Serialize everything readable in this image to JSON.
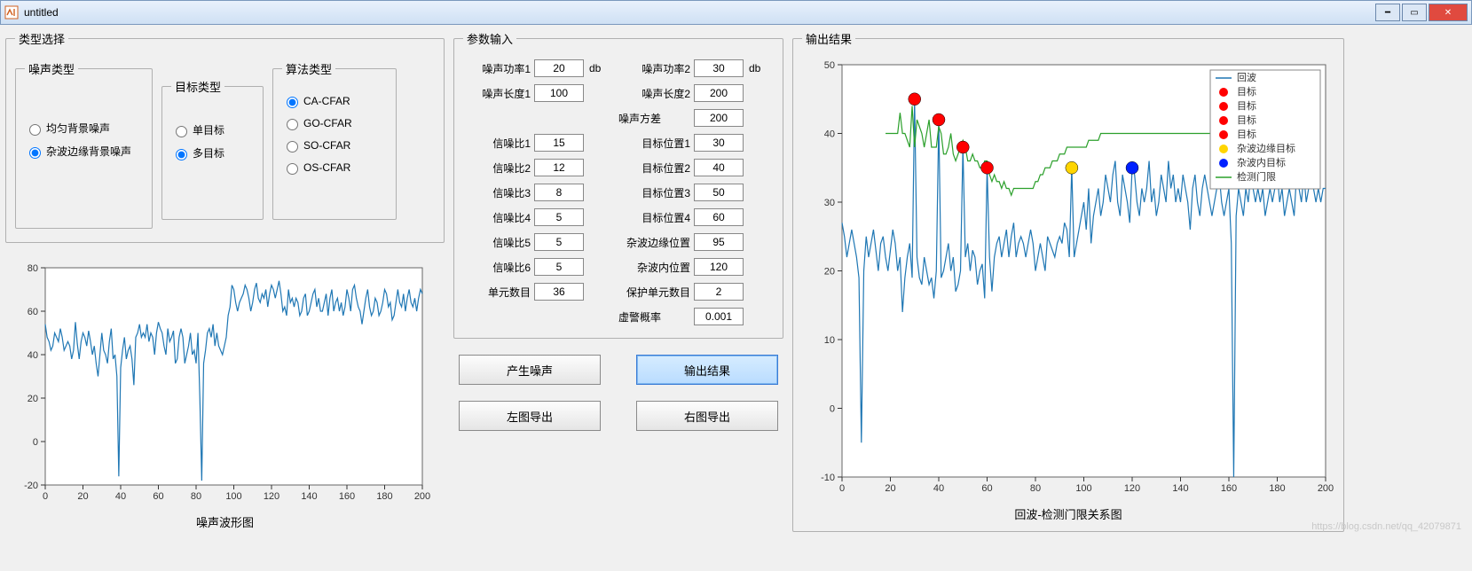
{
  "window": {
    "title": "untitled"
  },
  "panels": {
    "type_select": "类型选择",
    "noise_type": "噪声类型",
    "target_type": "目标类型",
    "algo_type": "算法类型",
    "param_input": "参数输入",
    "output_result": "输出结果"
  },
  "noise_types": {
    "opt1": "均匀背景噪声",
    "opt2": "杂波边缘背景噪声",
    "selected": 2
  },
  "target_types": {
    "opt1": "单目标",
    "opt2": "多目标",
    "selected": 2
  },
  "algo_types": {
    "opt1": "CA-CFAR",
    "opt2": "GO-CFAR",
    "opt3": "SO-CFAR",
    "opt4": "OS-CFAR",
    "selected": 1
  },
  "params": {
    "noise_power1_label": "噪声功率1",
    "noise_power1": "20",
    "db": "db",
    "noise_power2_label": "噪声功率2",
    "noise_power2": "30",
    "noise_len1_label": "噪声长度1",
    "noise_len1": "100",
    "noise_len2_label": "噪声长度2",
    "noise_len2": "200",
    "noise_var_label": "噪声方差",
    "noise_var": "200",
    "snr1_label": "信噪比1",
    "snr1": "15",
    "pos1_label": "目标位置1",
    "pos1": "30",
    "snr2_label": "信噪比2",
    "snr2": "12",
    "pos2_label": "目标位置2",
    "pos2": "40",
    "snr3_label": "信噪比3",
    "snr3": "8",
    "pos3_label": "目标位置3",
    "pos3": "50",
    "snr4_label": "信噪比4",
    "snr4": "5",
    "pos4_label": "目标位置4",
    "pos4": "60",
    "snr5_label": "信噪比5",
    "snr5": "5",
    "edge_pos_label": "杂波边缘位置",
    "edge_pos": "95",
    "snr6_label": "信噪比6",
    "snr6": "5",
    "inner_pos_label": "杂波内位置",
    "inner_pos": "120",
    "cells_label": "单元数目",
    "cells": "36",
    "guard_label": "保护单元数目",
    "guard": "2",
    "pfa_label": "虚警概率",
    "pfa": "0.001"
  },
  "buttons": {
    "gen_noise": "产生噪声",
    "output": "输出结果",
    "export_left": "左图导出",
    "export_right": "右图导出"
  },
  "left_chart": {
    "title": "噪声波形图",
    "xlim": [
      0,
      200
    ],
    "xticks": [
      0,
      20,
      40,
      60,
      80,
      100,
      120,
      140,
      160,
      180,
      200
    ],
    "ylim": [
      -20,
      80
    ],
    "yticks": [
      -20,
      0,
      20,
      40,
      60,
      80
    ],
    "line_color": "#1f77b4",
    "data_y": [
      54,
      48,
      46,
      42,
      44,
      50,
      48,
      46,
      52,
      48,
      42,
      44,
      46,
      44,
      38,
      42,
      55,
      45,
      38,
      46,
      50,
      48,
      44,
      51,
      46,
      40,
      44,
      36,
      30,
      40,
      50,
      42,
      40,
      36,
      46,
      52,
      38,
      40,
      30,
      -16,
      34,
      42,
      48,
      38,
      42,
      44,
      38,
      26,
      48,
      50,
      54,
      48,
      50,
      48,
      54,
      46,
      50,
      48,
      40,
      50,
      55,
      52,
      50,
      44,
      40,
      52,
      46,
      48,
      51,
      36,
      38,
      48,
      52,
      48,
      36,
      40,
      44,
      50,
      40,
      42,
      36,
      50,
      20,
      -18,
      36,
      42,
      50,
      52,
      48,
      54,
      44,
      50,
      44,
      42,
      40,
      44,
      48,
      58,
      62,
      72,
      70,
      64,
      60,
      64,
      66,
      68,
      72,
      70,
      66,
      60,
      64,
      70,
      73,
      66,
      64,
      68,
      66,
      70,
      62,
      68,
      72,
      70,
      66,
      70,
      74,
      68,
      60,
      62,
      58,
      70,
      64,
      66,
      62,
      66,
      64,
      58,
      60,
      66,
      68,
      58,
      60,
      64,
      68,
      70,
      62,
      66,
      60,
      60,
      64,
      68,
      58,
      66,
      70,
      60,
      64,
      66,
      60,
      64,
      58,
      62,
      70,
      66,
      60,
      70,
      72,
      66,
      62,
      60,
      54,
      60,
      66,
      70,
      62,
      58,
      60,
      66,
      64,
      58,
      60,
      64,
      70,
      68,
      62,
      64,
      56,
      58,
      64,
      70,
      64,
      62,
      68,
      60,
      66,
      70,
      64,
      62,
      66,
      60,
      66,
      70,
      68
    ]
  },
  "right_chart": {
    "title": "回波-检测门限关系图",
    "xlim": [
      0,
      200
    ],
    "xticks": [
      0,
      20,
      40,
      60,
      80,
      100,
      120,
      140,
      160,
      180,
      200
    ],
    "ylim": [
      -10,
      50
    ],
    "yticks": [
      -10,
      0,
      10,
      20,
      30,
      40,
      50
    ],
    "echo_color": "#1f77b4",
    "threshold_color": "#2ca02c",
    "markers": [
      {
        "x": 30,
        "y": 45,
        "color": "#ff0000"
      },
      {
        "x": 40,
        "y": 42,
        "color": "#ff0000"
      },
      {
        "x": 50,
        "y": 38,
        "color": "#ff0000"
      },
      {
        "x": 60,
        "y": 35,
        "color": "#ff0000"
      },
      {
        "x": 95,
        "y": 35,
        "color": "#ffd500"
      },
      {
        "x": 120,
        "y": 35,
        "color": "#0020ff"
      }
    ],
    "legend": {
      "echo": "回波",
      "target": "目标",
      "edge_target": "杂波边缘目标",
      "inner_target": "杂波内目标",
      "threshold": "检测门限"
    },
    "echo_y": [
      27,
      25,
      22,
      24,
      26,
      24,
      22,
      19,
      -5,
      20,
      25,
      22,
      24,
      26,
      23,
      20,
      24,
      25,
      22,
      20,
      23,
      26,
      24,
      20,
      22,
      14,
      19,
      22,
      24,
      19,
      45,
      22,
      19,
      18,
      22,
      20,
      18,
      19,
      16,
      20,
      42,
      19,
      20,
      22,
      24,
      20,
      22,
      17,
      18,
      20,
      38,
      22,
      24,
      20,
      23,
      22,
      18,
      20,
      21,
      16,
      35,
      22,
      17,
      22,
      24,
      25,
      22,
      24,
      26,
      22,
      25,
      27,
      22,
      24,
      25,
      24,
      22,
      24,
      26,
      24,
      20,
      22,
      24,
      22,
      20,
      25,
      24,
      23,
      22,
      24,
      25,
      24,
      27,
      26,
      22,
      35,
      22,
      24,
      26,
      28,
      30,
      26,
      32,
      24,
      28,
      30,
      32,
      28,
      30,
      34,
      32,
      30,
      34,
      36,
      30,
      28,
      34,
      32,
      30,
      27,
      35,
      34,
      30,
      28,
      32,
      30,
      32,
      36,
      30,
      32,
      28,
      30,
      34,
      32,
      30,
      36,
      32,
      34,
      30,
      32,
      30,
      34,
      32,
      30,
      26,
      32,
      34,
      30,
      28,
      32,
      34,
      32,
      30,
      28,
      30,
      32,
      34,
      30,
      28,
      30,
      32,
      24,
      -10,
      28,
      32,
      30,
      28,
      32,
      30,
      34,
      32,
      30,
      32,
      30,
      32,
      28,
      30,
      32,
      30,
      32,
      34,
      30,
      32,
      28,
      30,
      32,
      30,
      28,
      34,
      32,
      30,
      34,
      30,
      32,
      36,
      32,
      30,
      32,
      30,
      32,
      32
    ],
    "threshold_y": [
      null,
      null,
      null,
      null,
      null,
      null,
      null,
      null,
      null,
      null,
      null,
      null,
      null,
      null,
      null,
      null,
      null,
      null,
      40,
      40,
      40,
      40,
      40,
      40,
      43,
      40,
      40,
      39,
      38,
      44,
      38,
      42,
      41,
      40,
      38,
      40,
      42,
      38,
      38,
      38,
      41,
      40,
      37,
      37,
      38,
      40,
      37,
      36,
      37,
      38,
      39,
      38,
      36,
      36,
      37,
      36,
      36,
      35,
      35,
      36,
      36,
      34,
      33,
      34,
      33,
      33,
      32,
      33,
      32,
      32,
      31,
      32,
      32,
      32,
      32,
      32,
      32,
      32,
      32,
      32,
      33,
      33,
      34,
      34,
      35,
      35,
      35,
      36,
      36,
      36,
      37,
      37,
      37,
      38,
      38,
      38,
      38,
      38,
      38,
      38,
      38,
      38,
      39,
      39,
      39,
      39,
      39,
      40,
      40,
      40,
      40,
      40,
      40,
      40,
      40,
      40,
      40,
      40,
      40,
      40,
      40,
      40,
      40,
      40,
      40,
      40,
      40,
      40,
      40,
      40,
      40,
      40,
      40,
      40,
      40,
      40,
      40,
      40,
      40,
      40,
      40,
      40,
      40,
      40,
      40,
      40,
      40,
      40,
      40,
      40,
      40,
      40,
      40,
      40,
      40,
      40,
      40,
      40,
      40,
      40,
      40,
      40,
      39,
      39,
      40,
      40,
      40,
      40,
      39,
      39,
      40,
      40,
      40,
      40,
      40,
      40,
      40,
      40,
      40,
      40,
      40,
      null,
      null,
      null,
      null,
      null,
      null,
      null,
      null,
      null,
      null,
      null,
      null,
      null,
      null,
      null,
      null,
      null,
      null,
      null,
      null
    ]
  },
  "watermark": "https://blog.csdn.net/qq_42079871"
}
